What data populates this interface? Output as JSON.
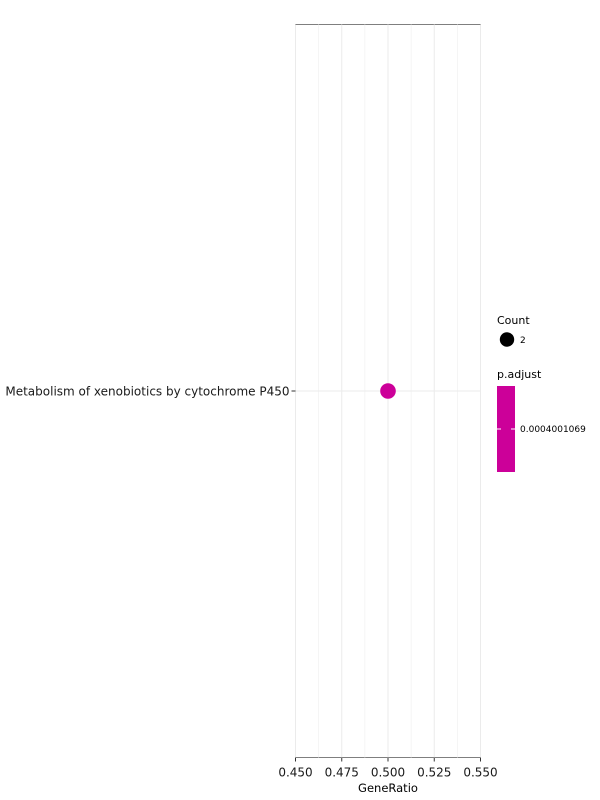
{
  "chart_data": {
    "type": "scatter",
    "xlabel": "GeneRatio",
    "ylabel": "",
    "xlim": [
      0.45,
      0.55
    ],
    "x_ticks": [
      "0.450",
      "0.475",
      "0.500",
      "0.525",
      "0.550"
    ],
    "categories": [
      "Metabolism of xenobiotics by cytochrome P450"
    ],
    "points": [
      {
        "category": "Metabolism of xenobiotics by cytochrome P450",
        "x": 0.5,
        "count": 2,
        "p_adjust": 0.0004001069,
        "color": "#cc0099"
      }
    ],
    "grid": true,
    "legend": {
      "position": "right",
      "size_title": "Count",
      "size_entries": [
        "2"
      ],
      "size_color": "#000000",
      "color_title": "p.adjust",
      "color_labels": [
        "0.0004001069"
      ],
      "color_bar": "#cc0099"
    }
  }
}
